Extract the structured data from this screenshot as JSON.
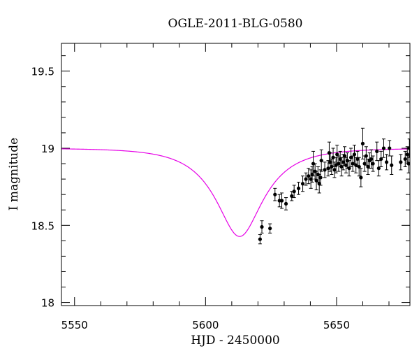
{
  "chart_data": {
    "type": "scatter",
    "title": "OGLE-2011-BLG-0580",
    "xlabel": "HJD - 2450000",
    "ylabel": "I magnitude",
    "xlim": [
      5545,
      5678
    ],
    "ylim": [
      19.68,
      17.98
    ],
    "y_inverted": true,
    "xticks_major": [
      5550,
      5600,
      5650
    ],
    "xticks_minor_step": 10,
    "yticks_major": [
      18,
      18.5,
      19,
      19.5
    ],
    "yticks_minor_step": 0.1,
    "x_tick_labels": [
      "5550",
      "5600",
      "5650"
    ],
    "y_tick_labels": [
      "18",
      "18.5",
      "19",
      "19.5"
    ],
    "grid": false,
    "legend": "none",
    "colors": {
      "model": "#e600e6",
      "points": "#000000"
    },
    "series": [
      {
        "type": "line",
        "params": {
          "t0": 5613,
          "u0": 0.45,
          "tE": 18,
          "baseline": 19.0,
          "fs_fraction": 0.5
        }
      },
      {
        "type": "scatter_errorbar",
        "points": [
          [
            5620.8,
            18.41,
            0.03
          ],
          [
            5621.5,
            18.49,
            0.04
          ],
          [
            5624.6,
            18.48,
            0.03
          ],
          [
            5626.5,
            18.7,
            0.04
          ],
          [
            5628.2,
            18.66,
            0.04
          ],
          [
            5629.1,
            18.66,
            0.05
          ],
          [
            5630.7,
            18.64,
            0.04
          ],
          [
            5632.9,
            18.69,
            0.03
          ],
          [
            5633.8,
            18.72,
            0.04
          ],
          [
            5635.5,
            18.74,
            0.04
          ],
          [
            5637.1,
            18.77,
            0.05
          ],
          [
            5638.3,
            18.8,
            0.04
          ],
          [
            5639.3,
            18.82,
            0.05
          ],
          [
            5640.2,
            18.8,
            0.06
          ],
          [
            5640.7,
            18.83,
            0.05
          ],
          [
            5641.1,
            18.9,
            0.08
          ],
          [
            5641.8,
            18.85,
            0.05
          ],
          [
            5642.3,
            18.79,
            0.06
          ],
          [
            5642.9,
            18.83,
            0.05
          ],
          [
            5643.4,
            18.77,
            0.06
          ],
          [
            5643.9,
            18.81,
            0.05
          ],
          [
            5644.2,
            18.92,
            0.07
          ],
          [
            5645.5,
            18.86,
            0.05
          ],
          [
            5646.8,
            18.87,
            0.05
          ],
          [
            5647.2,
            18.97,
            0.07
          ],
          [
            5647.6,
            18.91,
            0.06
          ],
          [
            5648.1,
            18.88,
            0.05
          ],
          [
            5648.7,
            18.94,
            0.06
          ],
          [
            5649.2,
            18.86,
            0.05
          ],
          [
            5649.8,
            18.89,
            0.05
          ],
          [
            5650.2,
            18.96,
            0.06
          ],
          [
            5650.8,
            18.9,
            0.05
          ],
          [
            5651.4,
            18.93,
            0.05
          ],
          [
            5651.9,
            18.88,
            0.06
          ],
          [
            5652.5,
            18.91,
            0.05
          ],
          [
            5653.1,
            18.95,
            0.06
          ],
          [
            5653.6,
            18.89,
            0.05
          ],
          [
            5654.1,
            18.92,
            0.05
          ],
          [
            5654.8,
            18.87,
            0.05
          ],
          [
            5655.5,
            18.94,
            0.06
          ],
          [
            5656.2,
            18.9,
            0.05
          ],
          [
            5656.8,
            18.96,
            0.06
          ],
          [
            5657.4,
            18.89,
            0.05
          ],
          [
            5658.0,
            18.93,
            0.05
          ],
          [
            5658.6,
            18.88,
            0.06
          ],
          [
            5659.3,
            18.81,
            0.06
          ],
          [
            5660.0,
            19.03,
            0.1
          ],
          [
            5660.7,
            18.9,
            0.05
          ],
          [
            5661.3,
            18.95,
            0.06
          ],
          [
            5662.0,
            18.88,
            0.05
          ],
          [
            5662.6,
            18.92,
            0.05
          ],
          [
            5663.2,
            18.93,
            0.06
          ],
          [
            5663.9,
            18.9,
            0.05
          ],
          [
            5665.4,
            18.98,
            0.06
          ],
          [
            5666.1,
            18.87,
            0.05
          ],
          [
            5667.0,
            18.93,
            0.05
          ],
          [
            5668.0,
            19.0,
            0.06
          ],
          [
            5669.1,
            18.91,
            0.05
          ],
          [
            5670.2,
            19.0,
            0.05
          ],
          [
            5671.0,
            18.89,
            0.06
          ],
          [
            5674.5,
            18.91,
            0.05
          ],
          [
            5676.2,
            18.93,
            0.05
          ],
          [
            5677.0,
            18.96,
            0.05
          ],
          [
            5677.5,
            18.9,
            0.06
          ],
          [
            5677.8,
            19.0,
            0.06
          ]
        ]
      }
    ]
  }
}
